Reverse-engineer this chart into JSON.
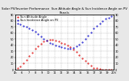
{
  "title": "Solar PV/Inverter Performance  Sun Altitude Angle & Sun Incidence Angle on PV Panels",
  "background_color": "#e8e8e8",
  "plot_bg": "#ffffff",
  "grid_color": "#aaaaaa",
  "xlim": [
    0,
    100
  ],
  "ylim_left": [
    0,
    90
  ],
  "ylim_right": [
    0,
    90
  ],
  "red_label": "Sun Altitude Angle",
  "blue_label": "Sun Incidence Angle on PV",
  "red_color": "#dd0000",
  "blue_color": "#0000cc",
  "red_x": [
    2,
    5,
    8,
    11,
    14,
    17,
    20,
    23,
    26,
    29,
    32,
    35,
    38,
    41,
    44,
    47,
    50,
    53,
    56,
    59,
    62,
    65,
    68,
    71,
    74,
    77,
    80,
    83,
    86,
    89,
    92,
    95,
    98
  ],
  "red_y": [
    2,
    5,
    10,
    16,
    22,
    28,
    34,
    39,
    43,
    46,
    48,
    49,
    49,
    48,
    46,
    44,
    42,
    40,
    37,
    33,
    29,
    24,
    19,
    14,
    10,
    6,
    3,
    2,
    1,
    0.5,
    0.2,
    0,
    0
  ],
  "blue_x": [
    2,
    5,
    8,
    11,
    14,
    17,
    20,
    23,
    26,
    29,
    32,
    35,
    38,
    41,
    44,
    47,
    50,
    53,
    56,
    59,
    62,
    65,
    68,
    71,
    74,
    77,
    80,
    83,
    86,
    89,
    92,
    95,
    98
  ],
  "blue_y": [
    75,
    74,
    72,
    70,
    68,
    65,
    62,
    58,
    54,
    50,
    47,
    44,
    42,
    40,
    38,
    37,
    36,
    35,
    35,
    36,
    38,
    41,
    45,
    50,
    55,
    61,
    67,
    72,
    76,
    80,
    83,
    85,
    87
  ],
  "xtick_labels": [
    "4h",
    "6",
    "7",
    "8",
    "9",
    "10",
    "11",
    "12",
    "13",
    "14",
    "15",
    "16",
    "17",
    "18",
    "19",
    "20h"
  ],
  "ytick_left": [
    0,
    10,
    20,
    30,
    40,
    50,
    60,
    70,
    80,
    90
  ],
  "ytick_right": [
    0,
    10,
    20,
    30,
    40,
    50,
    60,
    70,
    80,
    90
  ],
  "title_fontsize": 2.8,
  "tick_fontsize": 2.5,
  "legend_fontsize": 2.5
}
